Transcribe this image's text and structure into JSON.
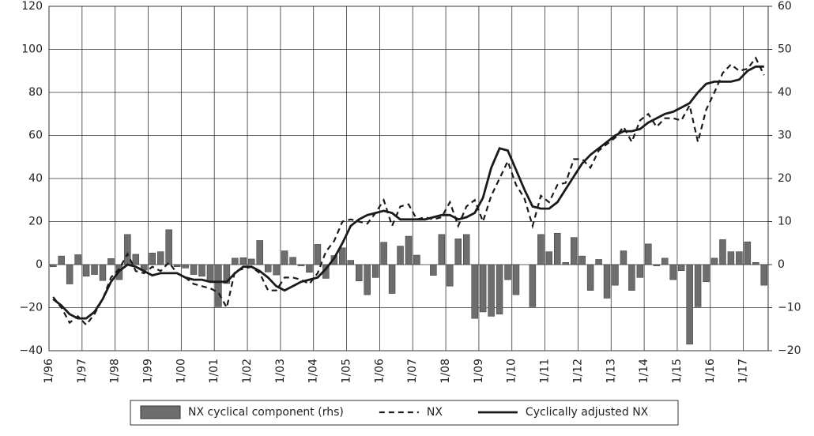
{
  "chart_data": {
    "type": "bar-line",
    "categories": [
      "1/96",
      null,
      null,
      null,
      "1/97",
      null,
      null,
      null,
      "1/98",
      null,
      null,
      null,
      "1/99",
      null,
      null,
      null,
      "1/00",
      null,
      null,
      null,
      "1/01",
      null,
      null,
      null,
      "1/02",
      null,
      null,
      null,
      "1/03",
      null,
      null,
      null,
      "1/04",
      null,
      null,
      null,
      "1/05",
      null,
      null,
      null,
      "1/06",
      null,
      null,
      null,
      "1/07",
      null,
      null,
      null,
      "1/08",
      null,
      null,
      null,
      "1/09",
      null,
      null,
      null,
      "1/10",
      null,
      null,
      null,
      "1/11",
      null,
      null,
      null,
      "1/12",
      null,
      null,
      null,
      "1/13",
      null,
      null,
      null,
      "1/14",
      null,
      null,
      null,
      "1/15",
      null,
      null,
      null,
      "1/16",
      null,
      null,
      null,
      "1/17",
      null,
      null
    ],
    "series": [
      {
        "name": "NX cyclical component (rhs)",
        "kind": "bar",
        "axis": "y2",
        "color": "#6d6d6d",
        "values": [
          -0.5,
          2,
          -4.5,
          2.3,
          -2.7,
          -2.3,
          -3.7,
          1.4,
          -3.5,
          7,
          2.4,
          -1.3,
          2.7,
          3,
          8.1,
          -0.5,
          -0.8,
          -2.3,
          -2.7,
          -4,
          -9.8,
          -4.4,
          1.5,
          1.6,
          1.3,
          5.6,
          -1.7,
          -2.4,
          3.2,
          1.7,
          -0.3,
          -1.8,
          4.7,
          -3.2,
          2.1,
          3.9,
          1,
          -3.8,
          -7,
          -3,
          5.2,
          -6.7,
          4.3,
          6.6,
          2.2,
          0,
          -2.5,
          7,
          -5,
          6,
          7,
          -12.5,
          -11,
          -12,
          -11.5,
          -3.5,
          -7,
          0,
          -9.8,
          7,
          3,
          7.3,
          0.5,
          6.3,
          2,
          -6,
          1.2,
          -7.8,
          -4.8,
          3.2,
          -6,
          -3,
          4.8,
          -0.3,
          1.5,
          -3.5,
          -1.4,
          -18.5,
          -9.8,
          -4,
          1.5,
          5.8,
          3,
          3,
          5.3,
          0.5,
          -4.8
        ]
      },
      {
        "name": "NX",
        "kind": "dashed",
        "color": "#1a1a1a",
        "values": [
          -15,
          -20,
          -27,
          -24,
          -28,
          -23,
          -16,
          -6,
          -2,
          5,
          -3,
          -4,
          -1,
          -3,
          1,
          -4,
          -6,
          -9,
          -10,
          -11,
          -13,
          -20,
          -3,
          -2,
          -1,
          -4,
          -12,
          -12,
          -6,
          -6,
          -7,
          -9,
          -4,
          6,
          11,
          20,
          21,
          20,
          19,
          24,
          30,
          18,
          27,
          28,
          21,
          22,
          21,
          22,
          29,
          18,
          27,
          30,
          20,
          32,
          40,
          48,
          37,
          31,
          18,
          32,
          29,
          37,
          38,
          49,
          49,
          45,
          53,
          56,
          59,
          64,
          57,
          67,
          70,
          64,
          68,
          68,
          67,
          74,
          57,
          72,
          80,
          89,
          93,
          90,
          91,
          96,
          88
        ]
      },
      {
        "name": "Cyclically adjusted NX",
        "kind": "solid",
        "color": "#1a1a1a",
        "values": [
          -16,
          -19,
          -23,
          -25,
          -25,
          -22,
          -16,
          -8,
          -3,
          0,
          -1,
          -3,
          -5,
          -4,
          -4,
          -4,
          -6,
          -7,
          -7,
          -8,
          -8,
          -8,
          -4,
          -1,
          -1,
          -3,
          -6,
          -10,
          -12,
          -10,
          -8,
          -7,
          -6,
          -2,
          3,
          10,
          18,
          21,
          23,
          24,
          25,
          24,
          21,
          21,
          21,
          21,
          22,
          23,
          23,
          21,
          22,
          24,
          31,
          45,
          54,
          53,
          44,
          35,
          27,
          26,
          26,
          29,
          35,
          41,
          47,
          51,
          54,
          57,
          60,
          62,
          62,
          63,
          66,
          68,
          70,
          71,
          73,
          75,
          80,
          84,
          85,
          85,
          85,
          86,
          90,
          92,
          92
        ]
      }
    ],
    "ylim": [
      -40,
      120
    ],
    "yticks": [
      {
        "value": -40,
        "label": "−40"
      },
      {
        "value": -20,
        "label": "−20"
      },
      0,
      20,
      40,
      60,
      80,
      100,
      120
    ],
    "y2lim": [
      -20,
      60
    ],
    "y2ticks": [
      {
        "value": -20,
        "label": "−20"
      },
      {
        "value": -10,
        "label": "−10"
      },
      0,
      10,
      20,
      30,
      40,
      50,
      60
    ],
    "grid": true,
    "legend": "bottom"
  }
}
